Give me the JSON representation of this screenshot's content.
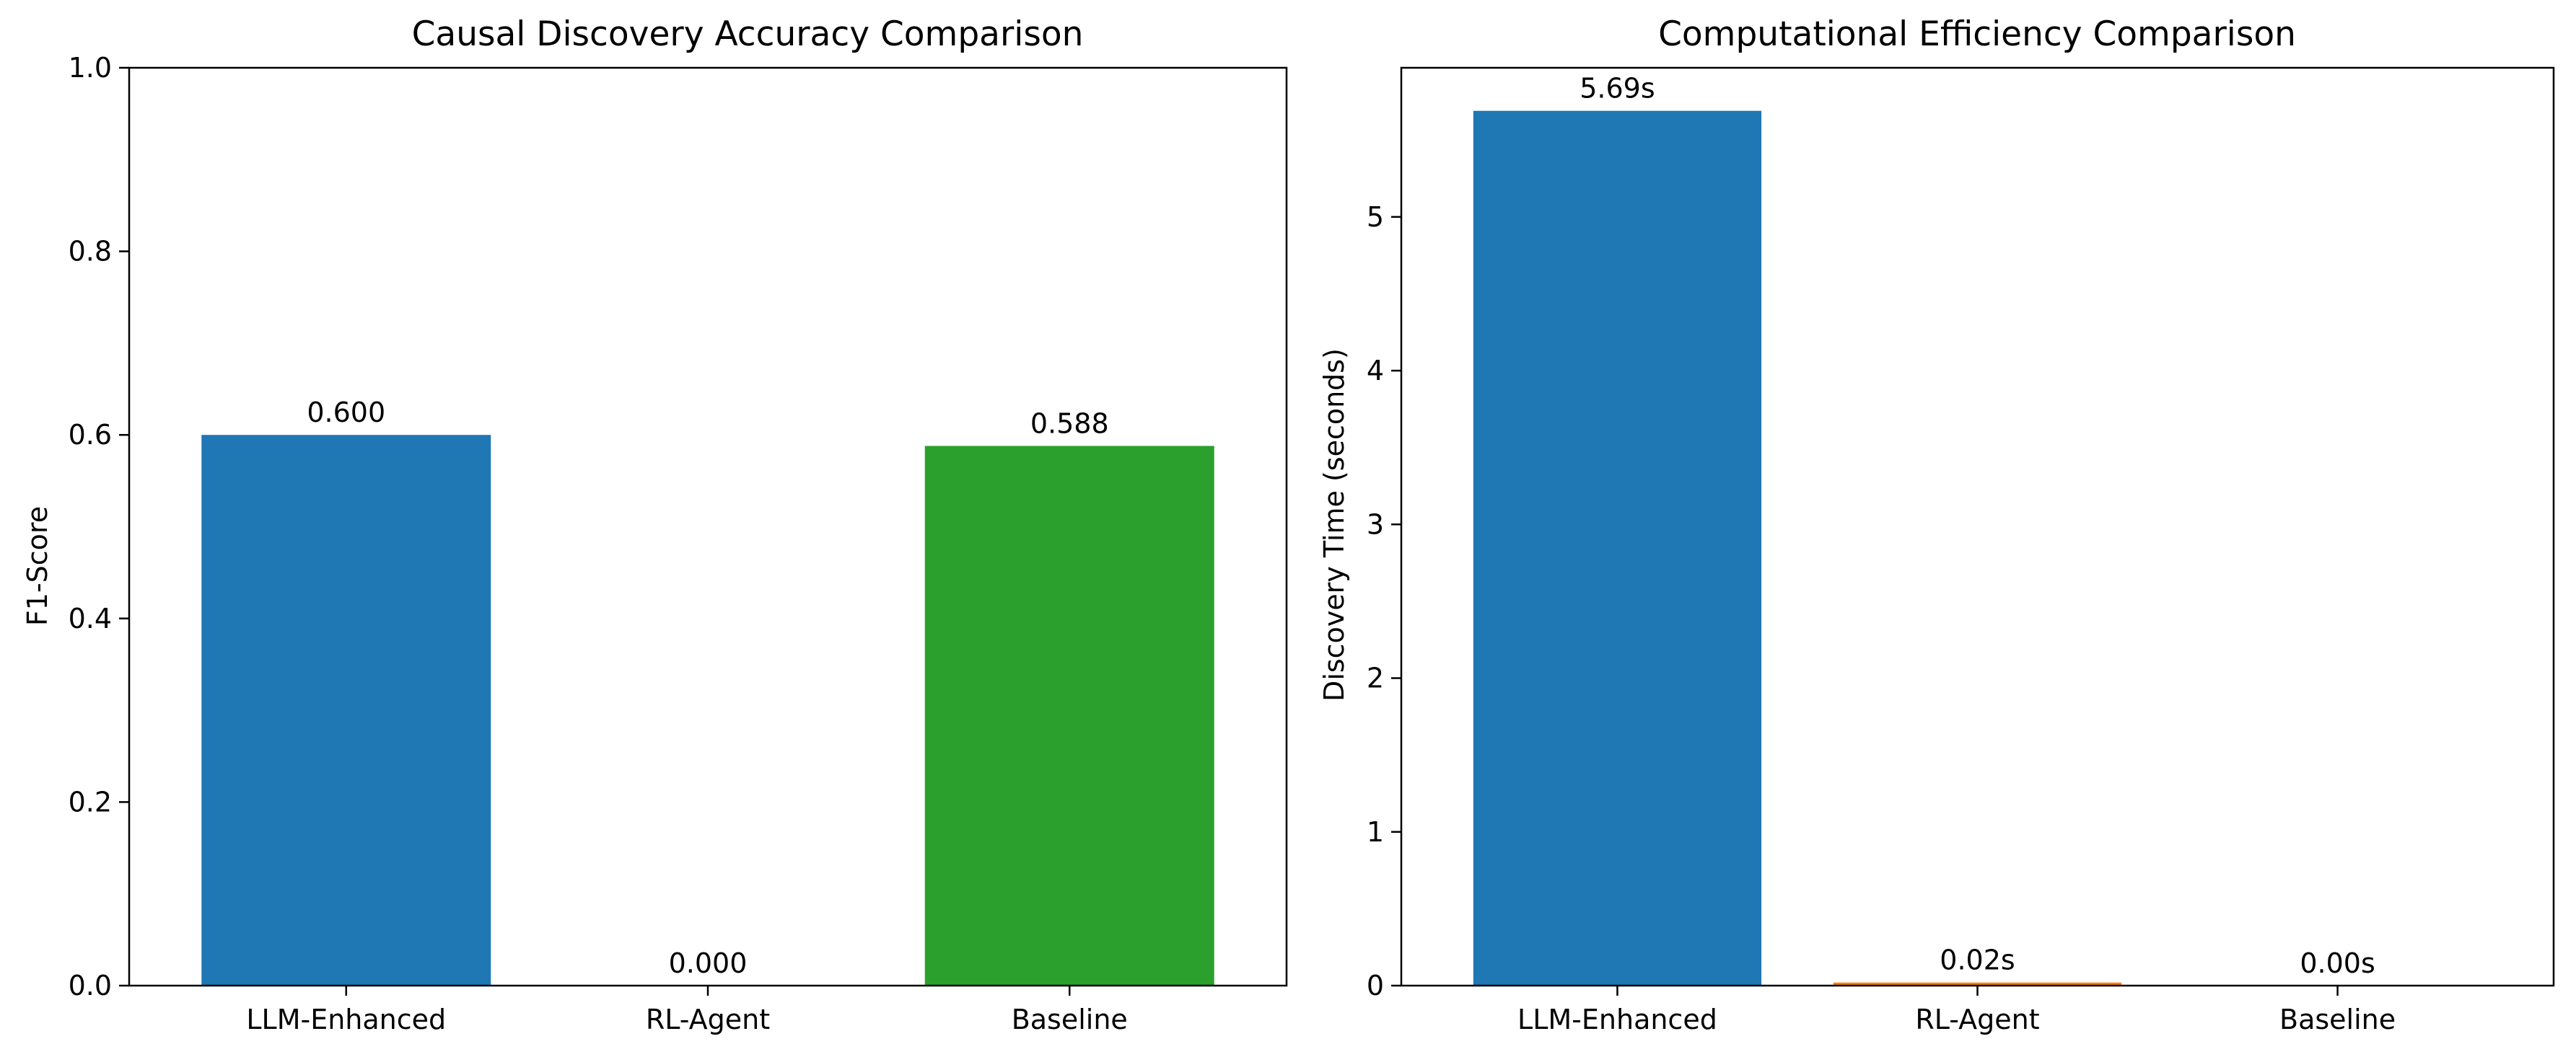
{
  "chart_data": [
    {
      "type": "bar",
      "title": "Causal Discovery Accuracy Comparison",
      "xlabel": "",
      "ylabel": "F1-Score",
      "categories": [
        "LLM-Enhanced",
        "RL-Agent",
        "Baseline"
      ],
      "values": [
        0.6,
        0.0,
        0.588
      ],
      "value_labels": [
        "0.600",
        "0.000",
        "0.588"
      ],
      "colors": [
        "#1f77b4",
        "#ff7f0e",
        "#2ca02c"
      ],
      "ylim": [
        0,
        1.0
      ],
      "yticks": [
        0.0,
        0.2,
        0.4,
        0.6,
        0.8,
        1.0
      ],
      "ytick_labels": [
        "0.0",
        "0.2",
        "0.4",
        "0.6",
        "0.8",
        "1.0"
      ],
      "grid": false,
      "legend": "none"
    },
    {
      "type": "bar",
      "title": "Computational Efficiency Comparison",
      "xlabel": "",
      "ylabel": "Discovery Time (seconds)",
      "categories": [
        "LLM-Enhanced",
        "RL-Agent",
        "Baseline"
      ],
      "values": [
        5.69,
        0.02,
        0.0
      ],
      "value_labels": [
        "5.69s",
        "0.02s",
        "0.00s"
      ],
      "colors": [
        "#1f77b4",
        "#ff7f0e",
        "#2ca02c"
      ],
      "ylim": [
        0,
        5.97
      ],
      "yticks": [
        0,
        1,
        2,
        3,
        4,
        5
      ],
      "ytick_labels": [
        "0",
        "1",
        "2",
        "3",
        "4",
        "5"
      ],
      "grid": false,
      "legend": "none"
    }
  ]
}
